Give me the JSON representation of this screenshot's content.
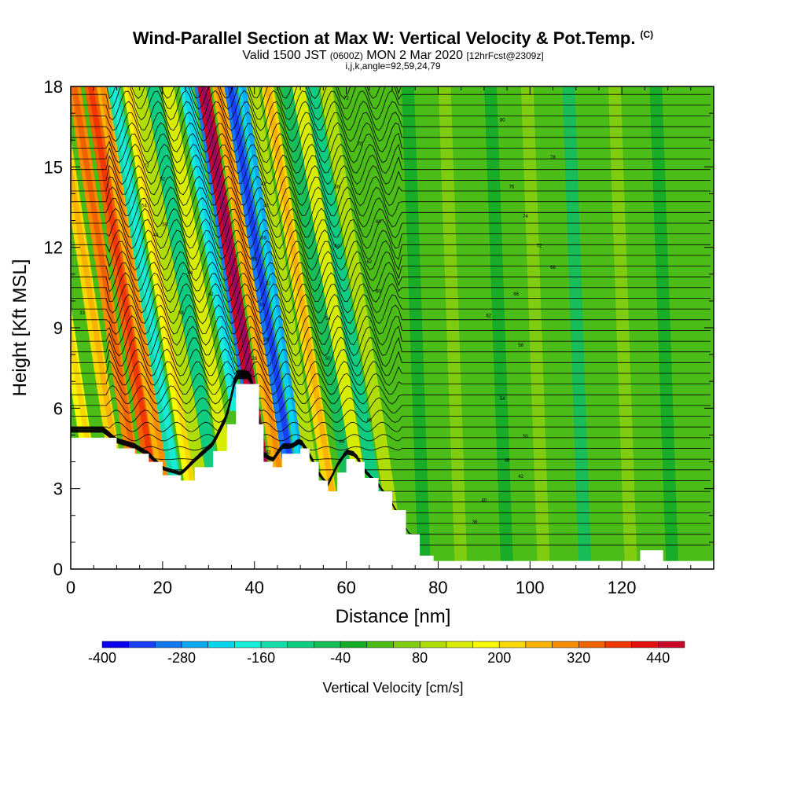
{
  "header": {
    "title": "Wind-Parallel Section at Max W: Vertical Velocity & Pot.Temp.",
    "copyright": "(C)",
    "valid_prefix": "Valid 1500 JST",
    "valid_utc": "(0600Z)",
    "valid_date": "MON 2 Mar 2020",
    "forecast": "[12hrFcst@2309z]",
    "ijk": "i,j,k,angle=92,59,24,79"
  },
  "chart_data": {
    "type": "heatmap",
    "xlabel": "Distance [nm]",
    "ylabel": "Height [Kft MSL]",
    "xlim": [
      0,
      140
    ],
    "ylim": [
      0,
      18
    ],
    "x_ticks": [
      0,
      20,
      40,
      60,
      80,
      100,
      120
    ],
    "y_ticks": [
      0,
      3,
      6,
      9,
      12,
      15,
      18
    ],
    "colorbar": {
      "label": "Vertical Velocity [cm/s]",
      "tick_labels": [
        "-400",
        "-280",
        "-160",
        "-40",
        "80",
        "200",
        "320",
        "440"
      ],
      "tick_values": [
        -400,
        -280,
        -160,
        -40,
        80,
        200,
        320,
        440
      ],
      "min": -400,
      "max": 480,
      "step": 40,
      "colors": [
        "#0a00f0",
        "#1a40f5",
        "#1478f0",
        "#10a8f0",
        "#08d4ec",
        "#18ecd8",
        "#18dca8",
        "#10cc80",
        "#18bc58",
        "#18ac28",
        "#4cbc18",
        "#80cc10",
        "#b0dc08",
        "#d8ec00",
        "#f8f800",
        "#f8d800",
        "#f8b400",
        "#f88c00",
        "#f06400",
        "#f03800",
        "#e01010",
        "#c80828",
        "#9c0860",
        "#681478",
        "#401470"
      ]
    },
    "terrain_kft": [
      [
        0,
        4.9
      ],
      [
        7,
        4.9
      ],
      [
        10,
        4.5
      ],
      [
        14,
        4.3
      ],
      [
        17,
        4.0
      ],
      [
        20,
        3.5
      ],
      [
        24,
        3.3
      ],
      [
        27,
        3.8
      ],
      [
        31,
        4.4
      ],
      [
        34,
        5.4
      ],
      [
        36,
        6.9
      ],
      [
        39,
        6.9
      ],
      [
        41,
        5.4
      ],
      [
        42,
        4.0
      ],
      [
        44,
        3.8
      ],
      [
        46,
        4.3
      ],
      [
        48,
        4.3
      ],
      [
        50,
        4.5
      ],
      [
        52,
        4.0
      ],
      [
        54,
        3.3
      ],
      [
        56,
        2.9
      ],
      [
        58,
        3.6
      ],
      [
        60,
        4.1
      ],
      [
        62,
        4.0
      ],
      [
        64,
        3.4
      ],
      [
        67,
        2.9
      ],
      [
        70,
        2.2
      ],
      [
        73,
        1.3
      ],
      [
        76,
        0.5
      ],
      [
        79,
        0.3
      ],
      [
        100,
        0.3
      ],
      [
        122,
        0.3
      ],
      [
        124,
        0.7
      ],
      [
        128,
        0.7
      ],
      [
        129,
        0.3
      ],
      [
        140,
        0.3
      ]
    ],
    "velocity_bands": [
      {
        "x": 4,
        "w": 160
      },
      {
        "x": 10,
        "w": 220
      },
      {
        "x": 14,
        "w": 280
      },
      {
        "x": 18,
        "w": 340
      },
      {
        "x": 21,
        "w": 240
      },
      {
        "x": 23.5,
        "w": -160
      },
      {
        "x": 26.5,
        "w": 160
      },
      {
        "x": 28.5,
        "w": 80
      },
      {
        "x": 31,
        "w": -120
      },
      {
        "x": 33.5,
        "w": 120
      },
      {
        "x": 36,
        "w": -200
      },
      {
        "x": 39.5,
        "w": -320
      },
      {
        "x": 42.5,
        "w": 440
      },
      {
        "x": 45.5,
        "w": 240
      },
      {
        "x": 48,
        "w": -320
      },
      {
        "x": 51,
        "w": -240
      },
      {
        "x": 53.5,
        "w": 80
      },
      {
        "x": 57,
        "w": 200
      },
      {
        "x": 60.5,
        "w": -80
      },
      {
        "x": 63.5,
        "w": 120
      },
      {
        "x": 67,
        "w": -120
      },
      {
        "x": 71,
        "w": 80
      },
      {
        "x": 77,
        "w": -40
      },
      {
        "x": 85,
        "w": 40
      },
      {
        "x": 95,
        "w": -40
      },
      {
        "x": 103,
        "w": 40
      },
      {
        "x": 112,
        "w": -60
      },
      {
        "x": 122,
        "w": 40
      },
      {
        "x": 131,
        "w": -40
      }
    ],
    "contour_labels": [
      {
        "x": 2.5,
        "y": 9.5,
        "text": "33"
      },
      {
        "x": 16.5,
        "y": 15,
        "text": "72"
      },
      {
        "x": 20,
        "y": 14.5,
        "text": "52"
      },
      {
        "x": 16,
        "y": 13.5,
        "text": "54"
      },
      {
        "x": 20.5,
        "y": 12.8,
        "text": "50"
      },
      {
        "x": 18.5,
        "y": 12.4,
        "text": "48"
      },
      {
        "x": 26,
        "y": 11,
        "text": "44"
      },
      {
        "x": 30.5,
        "y": 10.2,
        "text": "42"
      },
      {
        "x": 24,
        "y": 9.5,
        "text": "38"
      },
      {
        "x": 42,
        "y": 14.3,
        "text": "42"
      },
      {
        "x": 42.5,
        "y": 13.5,
        "text": "40"
      },
      {
        "x": 42,
        "y": 12.3,
        "text": "38"
      },
      {
        "x": 40,
        "y": 11.5,
        "text": "36"
      },
      {
        "x": 43,
        "y": 10.6,
        "text": "32"
      },
      {
        "x": 41.5,
        "y": 9.8,
        "text": "30"
      },
      {
        "x": 42.5,
        "y": 8.5,
        "text": "28"
      },
      {
        "x": 40,
        "y": 7.8,
        "text": "26"
      },
      {
        "x": 60,
        "y": 17.5,
        "text": "72"
      },
      {
        "x": 63,
        "y": 15.8,
        "text": "70"
      },
      {
        "x": 58,
        "y": 14.2,
        "text": "68"
      },
      {
        "x": 67,
        "y": 12.9,
        "text": "66"
      },
      {
        "x": 58,
        "y": 12.0,
        "text": "64"
      },
      {
        "x": 65,
        "y": 11.4,
        "text": "62"
      },
      {
        "x": 67,
        "y": 10.3,
        "text": "60"
      },
      {
        "x": 56,
        "y": 9.3,
        "text": "54"
      },
      {
        "x": 56,
        "y": 7.8,
        "text": "50"
      },
      {
        "x": 65,
        "y": 5.5,
        "text": "46"
      },
      {
        "x": 59,
        "y": 4.7,
        "text": "44"
      },
      {
        "x": 43,
        "y": 4.3,
        "text": "42"
      },
      {
        "x": 94,
        "y": 16.7,
        "text": "80"
      },
      {
        "x": 105,
        "y": 15.3,
        "text": "78"
      },
      {
        "x": 96,
        "y": 14.2,
        "text": "76"
      },
      {
        "x": 99,
        "y": 13.1,
        "text": "74"
      },
      {
        "x": 102,
        "y": 12.0,
        "text": "72"
      },
      {
        "x": 105,
        "y": 11.2,
        "text": "68"
      },
      {
        "x": 97,
        "y": 10.2,
        "text": "66"
      },
      {
        "x": 91,
        "y": 9.4,
        "text": "62"
      },
      {
        "x": 98,
        "y": 8.3,
        "text": "58"
      },
      {
        "x": 94,
        "y": 6.3,
        "text": "54"
      },
      {
        "x": 99,
        "y": 4.9,
        "text": "50"
      },
      {
        "x": 95,
        "y": 4.0,
        "text": "46"
      },
      {
        "x": 98,
        "y": 3.4,
        "text": "42"
      },
      {
        "x": 90,
        "y": 2.5,
        "text": "40"
      },
      {
        "x": 88,
        "y": 1.7,
        "text": "38"
      }
    ]
  }
}
